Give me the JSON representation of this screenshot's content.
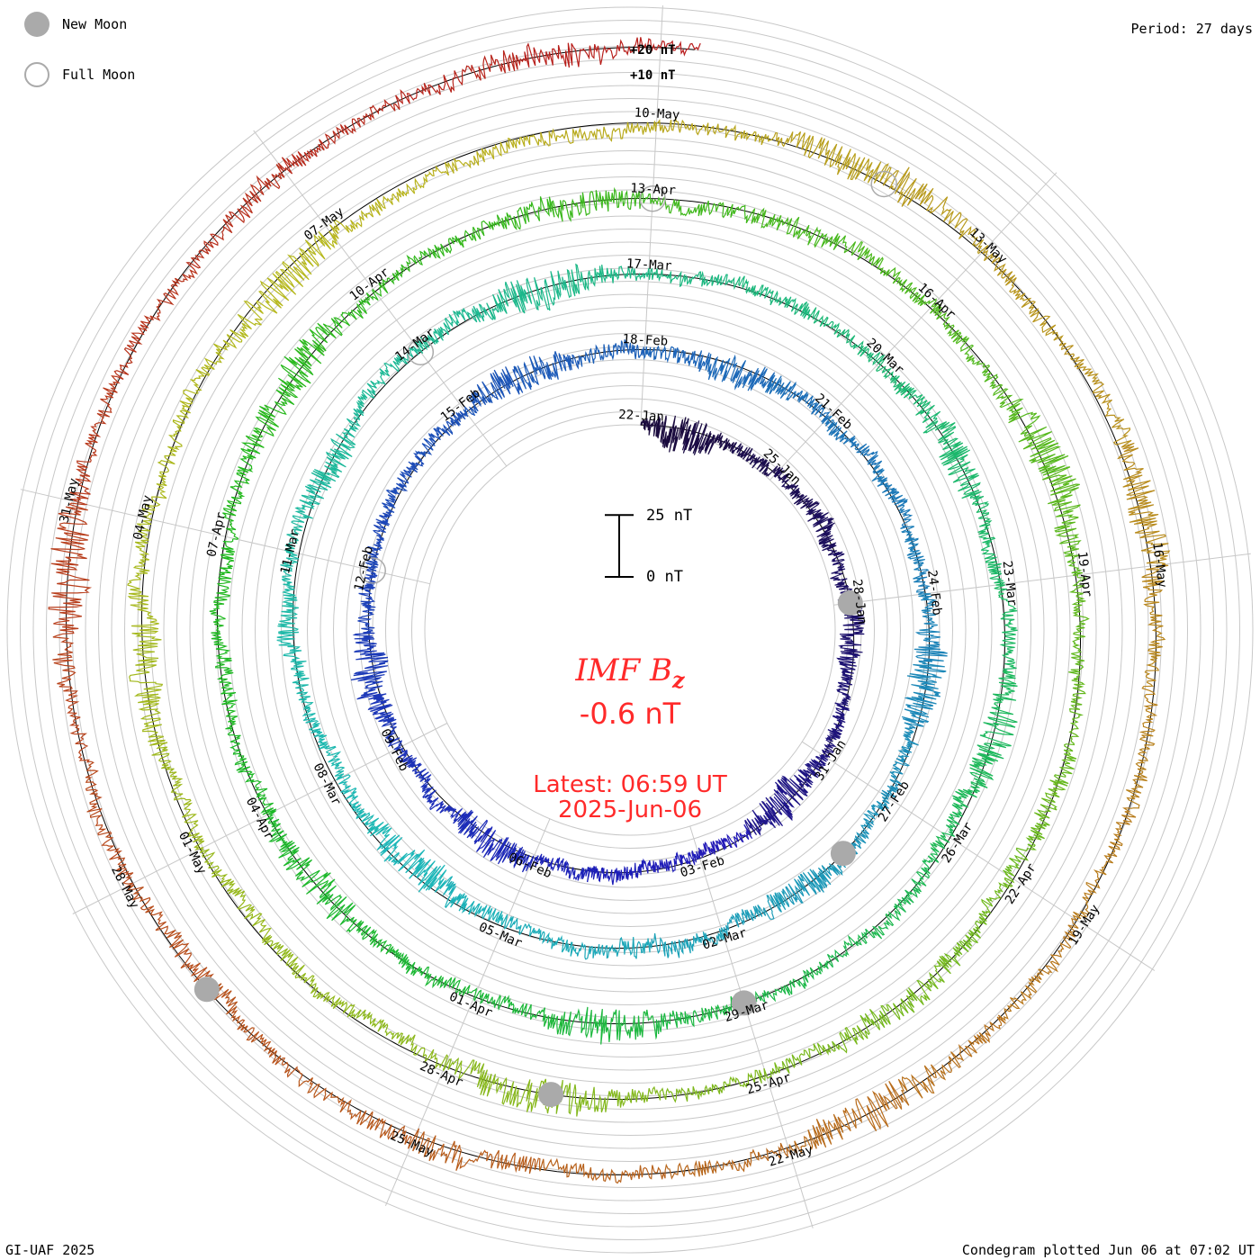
{
  "header": {
    "period_label": "Period: 27 days"
  },
  "legend": {
    "new_moon_label": "New Moon",
    "full_moon_label": "Full Moon"
  },
  "footer": {
    "source_label": "GI-UAF 2025",
    "plotted_label": "Condegram plotted Jun 06 at 07:02 UT"
  },
  "center": {
    "title_main": "IMF B",
    "title_sub": "z",
    "value_text": "-0.6 nT",
    "latest_line": "Latest: 06:59 UT",
    "date_line": "2025-Jun-06"
  },
  "scale_bar": {
    "top_label": "25 nT",
    "bottom_label": "0 nT"
  },
  "ring_scale_labels": {
    "outer": "+20 nT",
    "inner": "+10 nT"
  },
  "chart_data": {
    "type": "line",
    "title": "IMF Bz",
    "subtitle": "Condegram spiral, period 27 days",
    "units": "nT",
    "period_days": 27,
    "latest_value_nT": -0.6,
    "latest_time": "06:59 UT",
    "latest_date": "2025-Jun-06",
    "scale_reference_nT": [
      0,
      25
    ],
    "ring_offsets_nT": [
      10,
      20
    ],
    "start_date": "22-Jan",
    "end_date": "06-Jun",
    "date_labels": [
      "22-Jan",
      "25-Jan",
      "28-Jan",
      "31-Jan",
      "03-Feb",
      "06-Feb",
      "09-Feb",
      "12-Feb",
      "15-Feb",
      "18-Feb",
      "21-Feb",
      "24-Feb",
      "27-Feb",
      "02-Mar",
      "05-Mar",
      "08-Mar",
      "11-Mar",
      "14-Mar",
      "17-Mar",
      "20-Mar",
      "23-Mar",
      "26-Mar",
      "29-Mar",
      "01-Apr",
      "04-Apr",
      "07-Apr",
      "10-Apr",
      "13-Apr",
      "16-Apr",
      "19-Apr",
      "22-Apr",
      "25-Apr",
      "28-Apr",
      "01-May",
      "04-May",
      "07-May",
      "10-May",
      "13-May",
      "16-May",
      "19-May",
      "22-May",
      "25-May",
      "28-May",
      "31-May"
    ],
    "new_moon_dates": [
      "28-Jan",
      "28-Feb",
      "29-Mar",
      "27-Apr",
      "27-May"
    ],
    "full_moon_dates": [
      "12-Feb",
      "14-Mar",
      "13-Apr",
      "12-May"
    ],
    "series_color_start": "#1a0a3a",
    "series_color_end": "#c41a0a"
  }
}
